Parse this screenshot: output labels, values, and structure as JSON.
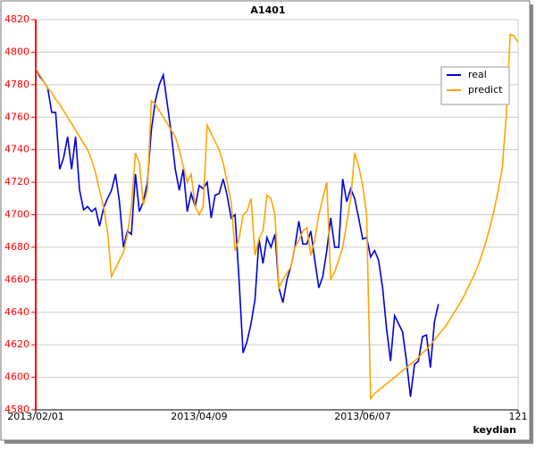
{
  "chart_data": {
    "type": "line",
    "title": "A1401",
    "x_label": "keydian",
    "x": [
      0,
      1,
      2,
      3,
      4,
      5,
      6,
      7,
      8,
      9,
      10,
      11,
      12,
      13,
      14,
      15,
      16,
      17,
      18,
      19,
      20,
      21,
      22,
      23,
      24,
      25,
      26,
      27,
      28,
      29,
      30,
      31,
      32,
      33,
      34,
      35,
      36,
      37,
      38,
      39,
      40,
      41,
      42,
      43,
      44,
      45,
      46,
      47,
      48,
      49,
      50,
      51,
      52,
      53,
      54,
      55,
      56,
      57,
      58,
      59,
      60,
      61,
      62,
      63,
      64,
      65,
      66,
      67,
      68,
      69,
      70,
      71,
      72,
      73,
      74,
      75,
      76,
      77,
      78,
      79,
      80,
      81,
      82,
      83,
      84,
      85,
      86,
      87,
      88,
      89,
      90,
      91,
      92,
      93,
      94,
      95,
      96,
      97,
      98,
      99,
      100,
      101,
      102,
      103,
      104,
      105,
      106,
      107,
      108,
      109,
      110,
      111,
      112,
      113,
      114,
      115,
      116,
      117,
      118,
      119,
      120,
      121
    ],
    "series": [
      {
        "name": "real",
        "color": "#0000dd",
        "values": [
          4790,
          4785,
          4782,
          4778,
          4763,
          4763,
          4728,
          4735,
          4748,
          4728,
          4748,
          4715,
          4703,
          4705,
          4702,
          4704,
          4693,
          4704,
          4710,
          4715,
          4725,
          4708,
          4680,
          4690,
          4688,
          4725,
          4702,
          4708,
          4720,
          4752,
          4770,
          4780,
          4786,
          4768,
          4750,
          4728,
          4715,
          4728,
          4702,
          4713,
          4705,
          4718,
          4716,
          4720,
          4698,
          4712,
          4713,
          4722,
          4712,
          4698,
          4700,
          4660,
          4615,
          4622,
          4633,
          4648,
          4685,
          4670,
          4686,
          4680,
          4688,
          4655,
          4646,
          4660,
          4668,
          4680,
          4696,
          4682,
          4682,
          4690,
          4672,
          4655,
          4662,
          4678,
          4698,
          4680,
          4680,
          4722,
          4708,
          4716,
          4710,
          4698,
          4685,
          4686,
          4674,
          4678,
          4672,
          4655,
          4630,
          4610,
          4638,
          4633,
          4628,
          4610,
          4588,
          4608,
          4610,
          4625,
          4626,
          4606,
          4634,
          4645,
          null,
          null,
          null,
          null,
          null,
          null,
          null,
          null,
          null,
          null,
          null,
          null,
          null,
          null,
          null,
          null,
          null,
          null,
          null,
          null
        ]
      },
      {
        "name": "predict",
        "color": "#ffa500",
        "values": [
          4790,
          4786,
          4782,
          4778,
          4775,
          4771,
          4768,
          4764,
          4760,
          4756,
          4752,
          4748,
          4744,
          4740,
          4734,
          4726,
          4715,
          4705,
          4690,
          4662,
          4667,
          4672,
          4677,
          4688,
          4705,
          4738,
          4732,
          4706,
          4715,
          4770,
          4768,
          4764,
          4760,
          4756,
          4752,
          4748,
          4740,
          4730,
          4720,
          4725,
          4705,
          4700,
          4705,
          4755,
          4750,
          4745,
          4740,
          4732,
          4720,
          4708,
          4678,
          4685,
          4700,
          4702,
          4710,
          4675,
          4685,
          4690,
          4712,
          4710,
          4700,
          4655,
          4660,
          4664,
          4668,
          4680,
          4684,
          4690,
          4692,
          4675,
          4685,
          4700,
          4710,
          4720,
          4660,
          4665,
          4672,
          4680,
          4695,
          4710,
          4738,
          4730,
          4718,
          4700,
          4587,
          4590,
          4592,
          4594,
          4596,
          4598,
          4600,
          4602,
          4604,
          4606,
          4608,
          4610,
          4612,
          4615,
          4617,
          4620,
          4623,
          4626,
          4629,
          4632,
          4636,
          4640,
          4644,
          4648,
          4653,
          4658,
          4663,
          4669,
          4676,
          4684,
          4693,
          4703,
          4715,
          4728,
          4760,
          4811,
          4810,
          4806
        ]
      }
    ],
    "xlim": [
      0,
      121
    ],
    "xticks": [
      {
        "value": 0,
        "label": "2013/02/01"
      },
      {
        "value": 41,
        "label": "2013/04/09"
      },
      {
        "value": 82,
        "label": "2013/06/07"
      },
      121
    ],
    "ylim": [
      4580,
      4820
    ],
    "yticks": [
      4580,
      4600,
      4620,
      4640,
      4660,
      4680,
      4700,
      4720,
      4740,
      4760,
      4780,
      4800,
      4820
    ],
    "grid": true,
    "legend": "upper right",
    "axis_color": "#ff0000"
  }
}
